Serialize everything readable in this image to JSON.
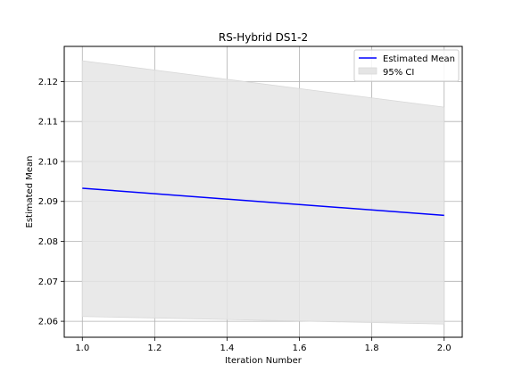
{
  "chart_data": {
    "type": "line",
    "title": "RS-Hybrid DS1-2",
    "xlabel": "Iteration Number",
    "ylabel": "Estimated Mean",
    "xlim": [
      0.95,
      2.05
    ],
    "ylim": [
      2.056,
      2.1288
    ],
    "xticks": [
      1.0,
      1.2,
      1.4,
      1.6,
      1.8,
      2.0
    ],
    "xtick_labels": [
      "1.0",
      "1.2",
      "1.4",
      "1.6",
      "1.8",
      "2.0"
    ],
    "yticks": [
      2.06,
      2.07,
      2.08,
      2.09,
      2.1,
      2.11,
      2.12
    ],
    "ytick_labels": [
      "2.06",
      "2.07",
      "2.08",
      "2.09",
      "2.10",
      "2.11",
      "2.12"
    ],
    "grid": true,
    "legend_position": "top-right",
    "series": [
      {
        "name": "Estimated Mean",
        "kind": "line",
        "color": "#0000ff",
        "x": [
          1.0,
          2.0
        ],
        "y": [
          2.0933,
          2.0865
        ]
      }
    ],
    "band": {
      "name": "95% CI",
      "color": "#e5e5e5",
      "edge_color": "#d8d8d8",
      "x": [
        1.0,
        2.0
      ],
      "lower": [
        2.0612,
        2.0593
      ],
      "upper": [
        2.1252,
        2.1136
      ]
    }
  }
}
